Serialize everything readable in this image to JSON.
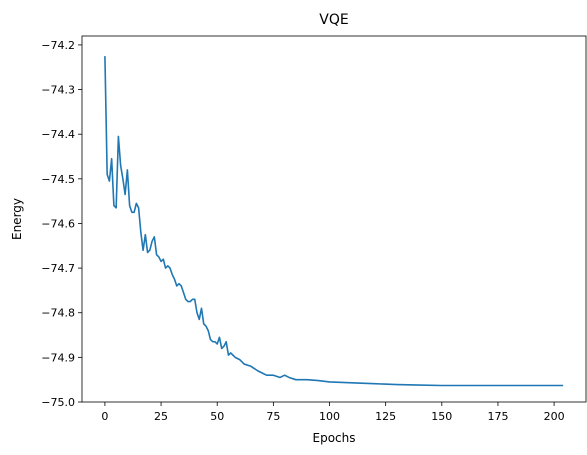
{
  "chart_data": {
    "type": "line",
    "title": "VQE",
    "xlabel": "Epochs",
    "ylabel": "Energy",
    "xlim": [
      -10.2,
      214.2
    ],
    "ylim": [
      -75.0,
      -74.18
    ],
    "x_ticks": [
      0,
      25,
      50,
      75,
      100,
      125,
      150,
      175,
      200
    ],
    "x_tick_labels": [
      "0",
      "25",
      "50",
      "75",
      "100",
      "125",
      "150",
      "175",
      "200"
    ],
    "y_ticks": [
      -75.0,
      -74.9,
      -74.8,
      -74.7,
      -74.6,
      -74.5,
      -74.4,
      -74.3,
      -74.2
    ],
    "y_tick_labels": [
      "−75.0",
      "−74.9",
      "−74.8",
      "−74.7",
      "−74.6",
      "−74.5",
      "−74.4",
      "−74.3",
      "−74.2"
    ],
    "grid": false,
    "series": [
      {
        "color": "#1f77b4",
        "points": [
          [
            0,
            -74.225
          ],
          [
            1,
            -74.49
          ],
          [
            2,
            -74.505
          ],
          [
            3,
            -74.455
          ],
          [
            4,
            -74.56
          ],
          [
            5,
            -74.565
          ],
          [
            6,
            -74.405
          ],
          [
            7,
            -74.47
          ],
          [
            8,
            -74.5
          ],
          [
            9,
            -74.535
          ],
          [
            10,
            -74.48
          ],
          [
            11,
            -74.56
          ],
          [
            12,
            -74.575
          ],
          [
            13,
            -74.575
          ],
          [
            14,
            -74.555
          ],
          [
            15,
            -74.565
          ],
          [
            16,
            -74.62
          ],
          [
            17,
            -74.66
          ],
          [
            18,
            -74.625
          ],
          [
            19,
            -74.665
          ],
          [
            20,
            -74.66
          ],
          [
            21,
            -74.64
          ],
          [
            22,
            -74.63
          ],
          [
            23,
            -74.67
          ],
          [
            24,
            -74.675
          ],
          [
            25,
            -74.685
          ],
          [
            26,
            -74.68
          ],
          [
            27,
            -74.7
          ],
          [
            28,
            -74.695
          ],
          [
            29,
            -74.7
          ],
          [
            30,
            -74.715
          ],
          [
            31,
            -74.725
          ],
          [
            32,
            -74.74
          ],
          [
            33,
            -74.735
          ],
          [
            34,
            -74.74
          ],
          [
            35,
            -74.755
          ],
          [
            36,
            -74.77
          ],
          [
            37,
            -74.775
          ],
          [
            38,
            -74.775
          ],
          [
            39,
            -74.77
          ],
          [
            40,
            -74.77
          ],
          [
            41,
            -74.8
          ],
          [
            42,
            -74.815
          ],
          [
            43,
            -74.79
          ],
          [
            44,
            -74.825
          ],
          [
            45,
            -74.83
          ],
          [
            46,
            -74.84
          ],
          [
            47,
            -74.86
          ],
          [
            48,
            -74.865
          ],
          [
            49,
            -74.865
          ],
          [
            50,
            -74.87
          ],
          [
            51,
            -74.855
          ],
          [
            52,
            -74.88
          ],
          [
            53,
            -74.875
          ],
          [
            54,
            -74.865
          ],
          [
            55,
            -74.895
          ],
          [
            56,
            -74.89
          ],
          [
            57,
            -74.895
          ],
          [
            58,
            -74.9
          ],
          [
            60,
            -74.905
          ],
          [
            62,
            -74.915
          ],
          [
            65,
            -74.92
          ],
          [
            68,
            -74.93
          ],
          [
            70,
            -74.935
          ],
          [
            72,
            -74.94
          ],
          [
            75,
            -74.94
          ],
          [
            78,
            -74.945
          ],
          [
            80,
            -74.94
          ],
          [
            82,
            -74.945
          ],
          [
            85,
            -74.95
          ],
          [
            90,
            -74.95
          ],
          [
            95,
            -74.952
          ],
          [
            100,
            -74.955
          ],
          [
            110,
            -74.957
          ],
          [
            120,
            -74.959
          ],
          [
            130,
            -74.961
          ],
          [
            140,
            -74.962
          ],
          [
            150,
            -74.963
          ],
          [
            160,
            -74.963
          ],
          [
            170,
            -74.963
          ],
          [
            180,
            -74.963
          ],
          [
            190,
            -74.963
          ],
          [
            200,
            -74.963
          ],
          [
            204,
            -74.963
          ]
        ]
      }
    ]
  }
}
